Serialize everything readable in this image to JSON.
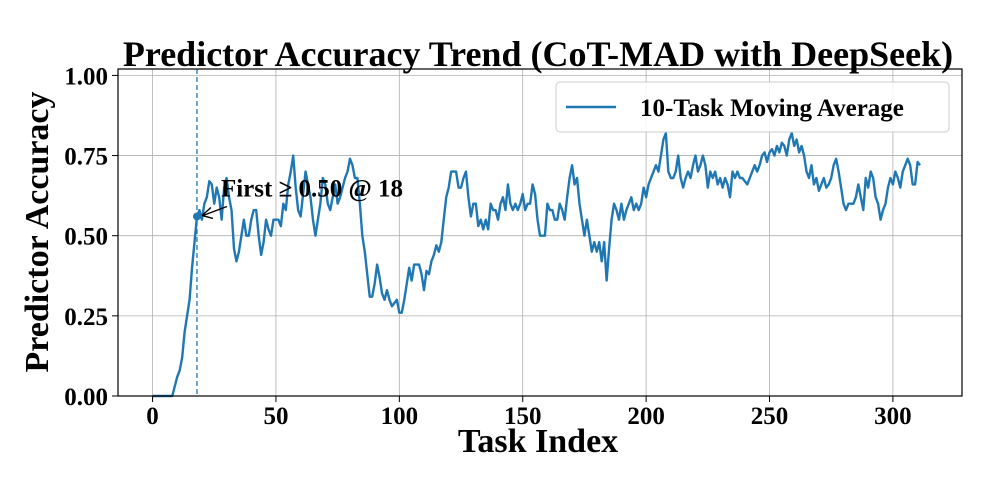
{
  "chart_data": {
    "type": "line",
    "title": "Predictor Accuracy Trend (CoT-MAD with DeepSeek)",
    "xlabel": "Task Index",
    "ylabel": "Predictor Accuracy",
    "xlim": [
      -14,
      328
    ],
    "ylim": [
      0,
      1.02
    ],
    "xticks": [
      0,
      50,
      100,
      150,
      200,
      250,
      300
    ],
    "yticks": [
      0.0,
      0.25,
      0.5,
      0.75,
      1.0
    ],
    "xtick_labels": [
      "0",
      "50",
      "100",
      "150",
      "200",
      "250",
      "300"
    ],
    "ytick_labels": [
      "0.00",
      "0.25",
      "0.50",
      "0.75",
      "1.00"
    ],
    "grid": true,
    "legend_position": "top-right",
    "series": [
      {
        "name": "10-Task Moving Average",
        "color": "#1f77b4",
        "points": [
          [
            0,
            0
          ],
          [
            3,
            0
          ],
          [
            5,
            0
          ],
          [
            7,
            0
          ],
          [
            8,
            0
          ],
          [
            9,
            0.03
          ],
          [
            10,
            0.06
          ],
          [
            11,
            0.08
          ],
          [
            12,
            0.12
          ],
          [
            13,
            0.2
          ],
          [
            14,
            0.25
          ],
          [
            15,
            0.3
          ],
          [
            16,
            0.4
          ],
          [
            17,
            0.48
          ],
          [
            18,
            0.56
          ],
          [
            19,
            0.58
          ],
          [
            20,
            0.55
          ],
          [
            21,
            0.6
          ],
          [
            22,
            0.62
          ],
          [
            23,
            0.67
          ],
          [
            24,
            0.66
          ],
          [
            25,
            0.6
          ],
          [
            26,
            0.65
          ],
          [
            27,
            0.62
          ],
          [
            28,
            0.55
          ],
          [
            29,
            0.65
          ],
          [
            30,
            0.68
          ],
          [
            31,
            0.62
          ],
          [
            32,
            0.58
          ],
          [
            33,
            0.46
          ],
          [
            34,
            0.42
          ],
          [
            35,
            0.45
          ],
          [
            36,
            0.5
          ],
          [
            37,
            0.55
          ],
          [
            38,
            0.5
          ],
          [
            39,
            0.5
          ],
          [
            40,
            0.55
          ],
          [
            41,
            0.58
          ],
          [
            42,
            0.58
          ],
          [
            43,
            0.5
          ],
          [
            44,
            0.44
          ],
          [
            45,
            0.48
          ],
          [
            46,
            0.55
          ],
          [
            47,
            0.52
          ],
          [
            48,
            0.5
          ],
          [
            49,
            0.55
          ],
          [
            50,
            0.55
          ],
          [
            51,
            0.55
          ],
          [
            52,
            0.53
          ],
          [
            53,
            0.6
          ],
          [
            54,
            0.58
          ],
          [
            55,
            0.66
          ],
          [
            56,
            0.7
          ],
          [
            57,
            0.75
          ],
          [
            58,
            0.65
          ],
          [
            59,
            0.58
          ],
          [
            60,
            0.56
          ],
          [
            61,
            0.63
          ],
          [
            62,
            0.7
          ],
          [
            63,
            0.66
          ],
          [
            64,
            0.62
          ],
          [
            65,
            0.55
          ],
          [
            66,
            0.5
          ],
          [
            67,
            0.55
          ],
          [
            68,
            0.6
          ],
          [
            69,
            0.68
          ],
          [
            70,
            0.66
          ],
          [
            71,
            0.6
          ],
          [
            72,
            0.58
          ],
          [
            73,
            0.62
          ],
          [
            74,
            0.66
          ],
          [
            75,
            0.6
          ],
          [
            76,
            0.62
          ],
          [
            77,
            0.65
          ],
          [
            78,
            0.68
          ],
          [
            79,
            0.7
          ],
          [
            80,
            0.74
          ],
          [
            81,
            0.72
          ],
          [
            82,
            0.68
          ],
          [
            83,
            0.68
          ],
          [
            84,
            0.6
          ],
          [
            85,
            0.5
          ],
          [
            86,
            0.45
          ],
          [
            87,
            0.38
          ],
          [
            88,
            0.31
          ],
          [
            89,
            0.31
          ],
          [
            90,
            0.35
          ],
          [
            91,
            0.41
          ],
          [
            92,
            0.37
          ],
          [
            93,
            0.32
          ],
          [
            94,
            0.3
          ],
          [
            95,
            0.33
          ],
          [
            96,
            0.3
          ],
          [
            97,
            0.28
          ],
          [
            98,
            0.29
          ],
          [
            99,
            0.3
          ],
          [
            100,
            0.26
          ],
          [
            101,
            0.26
          ],
          [
            102,
            0.3
          ],
          [
            103,
            0.35
          ],
          [
            104,
            0.4
          ],
          [
            105,
            0.36
          ],
          [
            106,
            0.41
          ],
          [
            107,
            0.41
          ],
          [
            108,
            0.41
          ],
          [
            109,
            0.38
          ],
          [
            110,
            0.33
          ],
          [
            111,
            0.39
          ],
          [
            112,
            0.38
          ],
          [
            113,
            0.42
          ],
          [
            114,
            0.44
          ],
          [
            115,
            0.47
          ],
          [
            116,
            0.45
          ],
          [
            117,
            0.48
          ],
          [
            118,
            0.55
          ],
          [
            119,
            0.62
          ],
          [
            120,
            0.65
          ],
          [
            121,
            0.7
          ],
          [
            122,
            0.7
          ],
          [
            123,
            0.7
          ],
          [
            124,
            0.65
          ],
          [
            125,
            0.65
          ],
          [
            126,
            0.68
          ],
          [
            127,
            0.7
          ],
          [
            128,
            0.62
          ],
          [
            129,
            0.56
          ],
          [
            130,
            0.6
          ],
          [
            131,
            0.6
          ],
          [
            132,
            0.53
          ],
          [
            133,
            0.55
          ],
          [
            134,
            0.52
          ],
          [
            135,
            0.55
          ],
          [
            136,
            0.52
          ],
          [
            137,
            0.6
          ],
          [
            138,
            0.58
          ],
          [
            139,
            0.58
          ],
          [
            140,
            0.55
          ],
          [
            141,
            0.6
          ],
          [
            142,
            0.62
          ],
          [
            143,
            0.58
          ],
          [
            144,
            0.66
          ],
          [
            145,
            0.6
          ],
          [
            146,
            0.58
          ],
          [
            147,
            0.6
          ],
          [
            148,
            0.58
          ],
          [
            149,
            0.6
          ],
          [
            150,
            0.63
          ],
          [
            151,
            0.58
          ],
          [
            152,
            0.6
          ],
          [
            153,
            0.6
          ],
          [
            154,
            0.66
          ],
          [
            155,
            0.63
          ],
          [
            156,
            0.55
          ],
          [
            157,
            0.5
          ],
          [
            158,
            0.5
          ],
          [
            159,
            0.5
          ],
          [
            160,
            0.6
          ],
          [
            161,
            0.58
          ],
          [
            162,
            0.58
          ],
          [
            163,
            0.55
          ],
          [
            164,
            0.55
          ],
          [
            165,
            0.6
          ],
          [
            166,
            0.58
          ],
          [
            167,
            0.55
          ],
          [
            168,
            0.62
          ],
          [
            169,
            0.68
          ],
          [
            170,
            0.72
          ],
          [
            171,
            0.66
          ],
          [
            172,
            0.68
          ],
          [
            173,
            0.6
          ],
          [
            174,
            0.55
          ],
          [
            175,
            0.5
          ],
          [
            176,
            0.55
          ],
          [
            177,
            0.5
          ],
          [
            178,
            0.45
          ],
          [
            179,
            0.48
          ],
          [
            180,
            0.45
          ],
          [
            181,
            0.48
          ],
          [
            182,
            0.42
          ],
          [
            183,
            0.48
          ],
          [
            184,
            0.36
          ],
          [
            185,
            0.46
          ],
          [
            186,
            0.55
          ],
          [
            187,
            0.6
          ],
          [
            188,
            0.58
          ],
          [
            189,
            0.55
          ],
          [
            190,
            0.6
          ],
          [
            191,
            0.55
          ],
          [
            192,
            0.58
          ],
          [
            193,
            0.6
          ],
          [
            194,
            0.62
          ],
          [
            195,
            0.58
          ],
          [
            196,
            0.6
          ],
          [
            197,
            0.58
          ],
          [
            198,
            0.6
          ],
          [
            199,
            0.65
          ],
          [
            200,
            0.62
          ],
          [
            201,
            0.66
          ],
          [
            202,
            0.68
          ],
          [
            203,
            0.7
          ],
          [
            204,
            0.72
          ],
          [
            205,
            0.7
          ],
          [
            206,
            0.75
          ],
          [
            207,
            0.8
          ],
          [
            208,
            0.82
          ],
          [
            209,
            0.7
          ],
          [
            210,
            0.68
          ],
          [
            211,
            0.68
          ],
          [
            212,
            0.7
          ],
          [
            213,
            0.75
          ],
          [
            214,
            0.68
          ],
          [
            215,
            0.65
          ],
          [
            216,
            0.68
          ],
          [
            217,
            0.7
          ],
          [
            218,
            0.68
          ],
          [
            219,
            0.72
          ],
          [
            220,
            0.75
          ],
          [
            221,
            0.7
          ],
          [
            222,
            0.72
          ],
          [
            223,
            0.75
          ],
          [
            224,
            0.72
          ],
          [
            225,
            0.65
          ],
          [
            226,
            0.7
          ],
          [
            227,
            0.68
          ],
          [
            228,
            0.7
          ],
          [
            229,
            0.66
          ],
          [
            230,
            0.68
          ],
          [
            231,
            0.65
          ],
          [
            232,
            0.68
          ],
          [
            233,
            0.66
          ],
          [
            234,
            0.62
          ],
          [
            235,
            0.7
          ],
          [
            236,
            0.68
          ],
          [
            237,
            0.7
          ],
          [
            238,
            0.68
          ],
          [
            239,
            0.68
          ],
          [
            240,
            0.67
          ],
          [
            241,
            0.66
          ],
          [
            242,
            0.68
          ],
          [
            243,
            0.7
          ],
          [
            244,
            0.72
          ],
          [
            245,
            0.7
          ],
          [
            246,
            0.72
          ],
          [
            247,
            0.75
          ],
          [
            248,
            0.76
          ],
          [
            249,
            0.73
          ],
          [
            250,
            0.76
          ],
          [
            251,
            0.77
          ],
          [
            252,
            0.75
          ],
          [
            253,
            0.78
          ],
          [
            254,
            0.76
          ],
          [
            255,
            0.79
          ],
          [
            256,
            0.78
          ],
          [
            257,
            0.75
          ],
          [
            258,
            0.8
          ],
          [
            259,
            0.82
          ],
          [
            260,
            0.78
          ],
          [
            261,
            0.8
          ],
          [
            262,
            0.76
          ],
          [
            263,
            0.78
          ],
          [
            264,
            0.75
          ],
          [
            265,
            0.7
          ],
          [
            266,
            0.68
          ],
          [
            267,
            0.72
          ],
          [
            268,
            0.66
          ],
          [
            269,
            0.68
          ],
          [
            270,
            0.64
          ],
          [
            271,
            0.66
          ],
          [
            272,
            0.68
          ],
          [
            273,
            0.65
          ],
          [
            274,
            0.66
          ],
          [
            275,
            0.68
          ],
          [
            276,
            0.72
          ],
          [
            277,
            0.74
          ],
          [
            278,
            0.7
          ],
          [
            279,
            0.65
          ],
          [
            280,
            0.6
          ],
          [
            281,
            0.58
          ],
          [
            282,
            0.6
          ],
          [
            283,
            0.6
          ],
          [
            284,
            0.6
          ],
          [
            285,
            0.62
          ],
          [
            286,
            0.66
          ],
          [
            287,
            0.62
          ],
          [
            288,
            0.58
          ],
          [
            289,
            0.68
          ],
          [
            290,
            0.65
          ],
          [
            291,
            0.7
          ],
          [
            292,
            0.68
          ],
          [
            293,
            0.62
          ],
          [
            294,
            0.6
          ],
          [
            295,
            0.55
          ],
          [
            296,
            0.58
          ],
          [
            297,
            0.6
          ],
          [
            298,
            0.65
          ],
          [
            299,
            0.68
          ],
          [
            300,
            0.66
          ],
          [
            301,
            0.7
          ],
          [
            302,
            0.68
          ],
          [
            303,
            0.65
          ],
          [
            304,
            0.7
          ],
          [
            305,
            0.72
          ],
          [
            306,
            0.74
          ],
          [
            307,
            0.72
          ],
          [
            308,
            0.66
          ],
          [
            309,
            0.66
          ],
          [
            310,
            0.73
          ],
          [
            311,
            0.72
          ]
        ]
      }
    ],
    "vline": {
      "x": 18,
      "style": "dashed",
      "color": "#1f77b4"
    },
    "marker": {
      "x": 18,
      "y": 0.56
    },
    "annotation": {
      "text": "First ≥ 0.50 @ 18",
      "x": 18,
      "y": 0.56,
      "arrow": true
    }
  }
}
